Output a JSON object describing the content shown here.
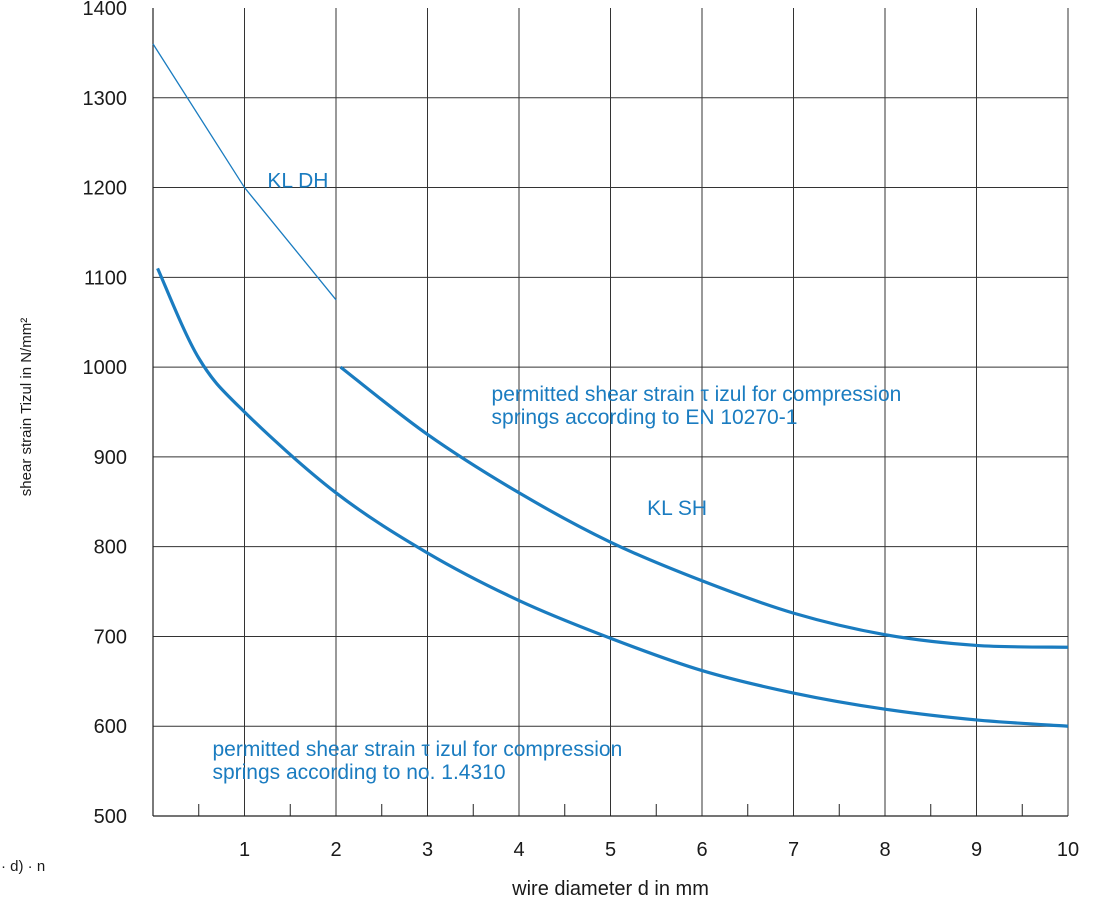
{
  "chart_data": {
    "type": "line",
    "xlabel": "wire diameter d in mm",
    "ylabel": "shear strain Tizul in N/mm²",
    "xlim": [
      0,
      10
    ],
    "ylim": [
      500,
      1400
    ],
    "x_ticks": [
      1,
      2,
      3,
      4,
      5,
      6,
      7,
      8,
      9,
      10
    ],
    "y_ticks": [
      500,
      600,
      700,
      800,
      900,
      1000,
      1100,
      1200,
      1300,
      1400
    ],
    "grid": true,
    "series_color": "#1a7cc0",
    "series": [
      {
        "label": "KL DH",
        "style": "thin",
        "x": [
          0,
          1,
          2
        ],
        "y": [
          1360,
          1200,
          1075
        ]
      },
      {
        "label": "KL SH",
        "style": "thick",
        "x": [
          2.05,
          3,
          4,
          5,
          6,
          7,
          8,
          9,
          10
        ],
        "y": [
          1000,
          925,
          860,
          805,
          762,
          726,
          702,
          690,
          688
        ]
      },
      {
        "label": "",
        "style": "thick",
        "x": [
          0.05,
          0.5,
          1,
          2,
          3,
          4,
          5,
          6,
          7,
          8,
          9,
          10
        ],
        "y": [
          1110,
          1010,
          950,
          860,
          793,
          740,
          698,
          662,
          637,
          619,
          607,
          600
        ]
      }
    ],
    "annotations": [
      {
        "lines": [
          "KL  DH"
        ],
        "x": 1.25,
        "y": 1200
      },
      {
        "lines": [
          "KL  SH"
        ],
        "x": 5.4,
        "y": 835
      },
      {
        "lines": [
          "permitted shear strain τ izul for compression",
          "springs according to EN 10270-1"
        ],
        "x": 3.7,
        "y": 962
      },
      {
        "lines": [
          "permitted shear strain τ izul for compression",
          "springs according to no. 1.4310"
        ],
        "x": 0.65,
        "y": 567
      }
    ],
    "fragment_text": "· d) · n"
  }
}
